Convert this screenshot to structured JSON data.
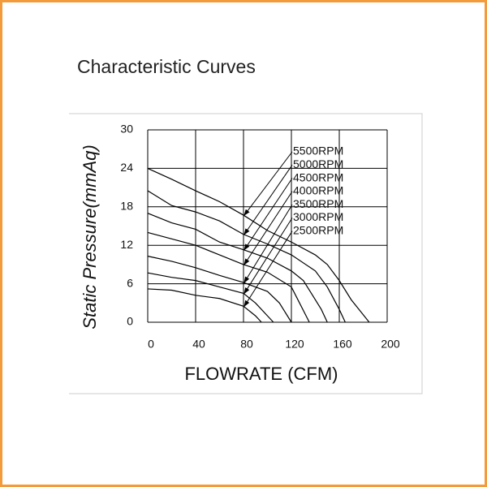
{
  "page_title": "Characteristic Curves",
  "chart_data": {
    "type": "line",
    "xlabel": "FLOWRATE (CFM)",
    "ylabel": "Static  Pressure(mmAq)",
    "xlim": [
      0,
      200
    ],
    "ylim": [
      0,
      30
    ],
    "xticks": [
      0,
      40,
      80,
      120,
      160,
      200
    ],
    "yticks": [
      0,
      6,
      12,
      18,
      24,
      30
    ],
    "grid": true,
    "series": [
      {
        "name": "5500RPM",
        "color": "#000000",
        "x": [
          0,
          20,
          40,
          60,
          80,
          100,
          120,
          140,
          150,
          160,
          170,
          185
        ],
        "values": [
          24,
          22.3,
          20.5,
          18.8,
          16.7,
          14.3,
          12.5,
          10.5,
          9,
          6.5,
          3.5,
          0
        ]
      },
      {
        "name": "5000RPM",
        "color": "#000000",
        "x": [
          0,
          20,
          40,
          60,
          80,
          100,
          120,
          140,
          150,
          160,
          165
        ],
        "values": [
          20.5,
          18.2,
          17.2,
          15.8,
          13.7,
          12.2,
          10.5,
          8,
          5.5,
          2,
          0
        ]
      },
      {
        "name": "4500RPM",
        "color": "#000000",
        "x": [
          0,
          20,
          40,
          60,
          80,
          100,
          120,
          130,
          145,
          150
        ],
        "values": [
          17,
          15.5,
          14.5,
          12.5,
          11.3,
          10,
          8,
          6.5,
          2,
          0
        ]
      },
      {
        "name": "4000RPM",
        "color": "#000000",
        "x": [
          0,
          20,
          40,
          60,
          80,
          100,
          120,
          135
        ],
        "values": [
          14,
          13,
          12,
          10.5,
          9,
          7.8,
          5.5,
          0
        ]
      },
      {
        "name": "3500RPM",
        "color": "#000000",
        "x": [
          0,
          20,
          40,
          60,
          80,
          100,
          110,
          120
        ],
        "values": [
          10.3,
          9.5,
          8.5,
          7.3,
          6.2,
          4.8,
          3,
          0
        ]
      },
      {
        "name": "3000RPM",
        "color": "#000000",
        "x": [
          0,
          20,
          40,
          60,
          80,
          90,
          100,
          105
        ],
        "values": [
          7.7,
          7,
          6.5,
          5.5,
          4.5,
          3,
          1,
          0
        ]
      },
      {
        "name": "2500RPM",
        "color": "#000000",
        "x": [
          0,
          20,
          40,
          60,
          80,
          90,
          95
        ],
        "values": [
          5.2,
          5,
          4.2,
          3.7,
          2.5,
          1,
          0
        ]
      }
    ]
  }
}
